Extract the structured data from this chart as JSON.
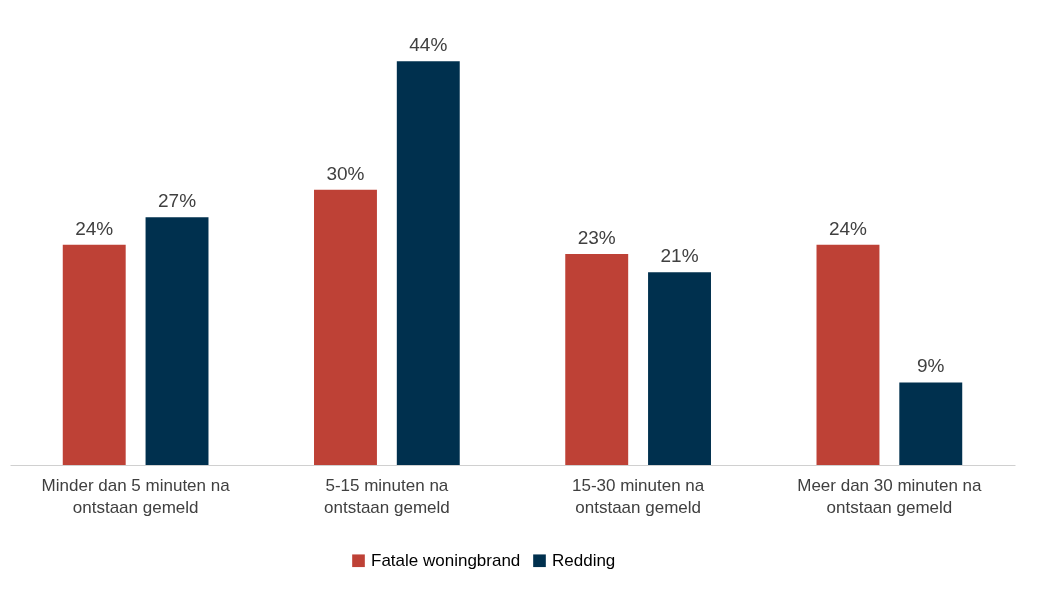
{
  "chart_data": {
    "type": "bar",
    "categories": [
      "Minder dan 5 minuten na ontstaan gemeld",
      "5-15 minuten na ontstaan gemeld",
      "15-30 minuten na ontstaan gemeld",
      "Meer dan 30 minuten na ontstaan gemeld"
    ],
    "series": [
      {
        "name": "Fatale woningbrand",
        "color": "#be4136",
        "values": [
          24,
          30,
          23,
          24
        ],
        "value_labels": [
          "24%",
          "30%",
          "23%",
          "24%"
        ]
      },
      {
        "name": "Redding",
        "color": "#00304e",
        "values": [
          27,
          44,
          21,
          9
        ],
        "value_labels": [
          "27%",
          "44%",
          "21%",
          "9%"
        ]
      }
    ],
    "legend": "bottom",
    "grid": false,
    "tick_labels": "x"
  }
}
